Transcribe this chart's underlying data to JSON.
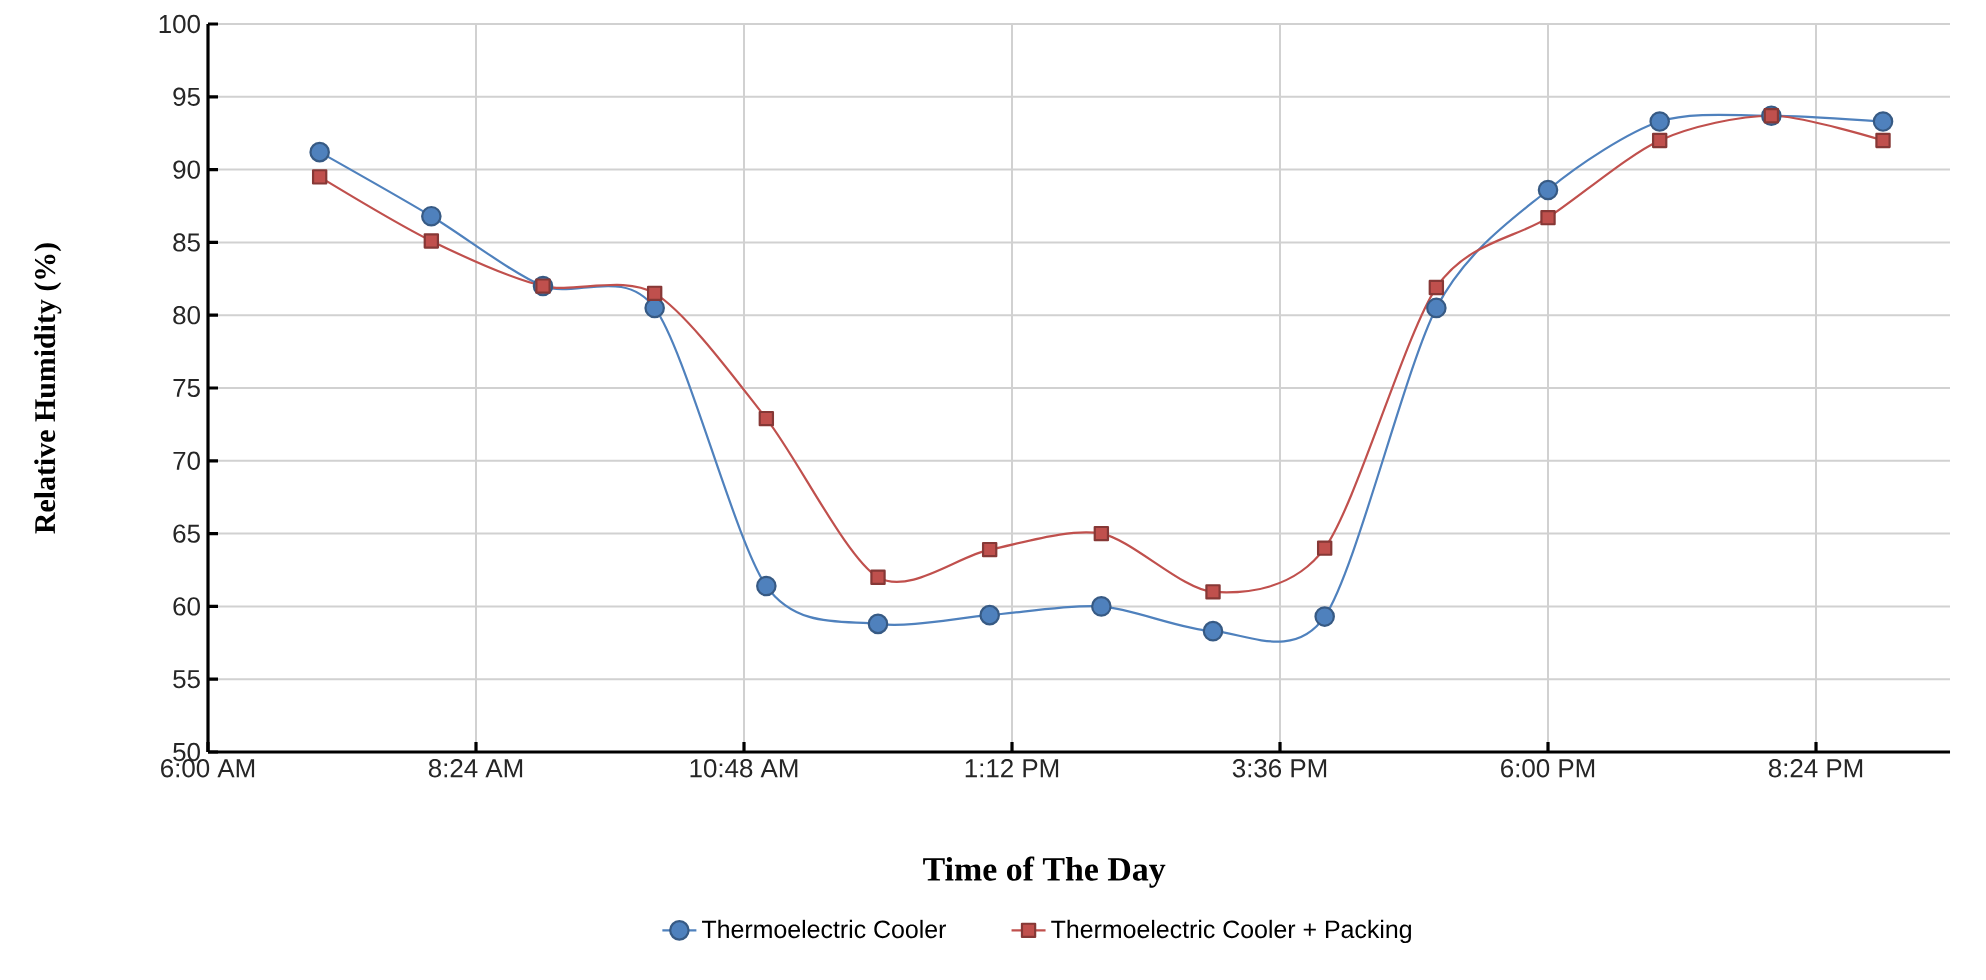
{
  "chart_data": {
    "type": "line",
    "xlabel": "Time of The Day",
    "ylabel": "Relative Humidity (%)",
    "x": [
      7,
      8,
      9,
      10,
      11,
      12,
      13,
      14,
      15,
      16,
      17,
      18,
      19,
      20,
      21
    ],
    "series": [
      {
        "name": "Thermoelectric Cooler",
        "color": "#4f81bd",
        "marker": "circle",
        "values": [
          91.2,
          86.8,
          82,
          80.5,
          61.4,
          58.8,
          59.4,
          60,
          58.3,
          59.3,
          80.5,
          88.6,
          93.3,
          93.7,
          93.3
        ]
      },
      {
        "name": "Thermoelectric Cooler + Packing",
        "color": "#c0504d",
        "marker": "square",
        "values": [
          89.5,
          85.1,
          82,
          81.5,
          72.9,
          62,
          63.9,
          65,
          61,
          64,
          81.9,
          86.7,
          92,
          93.7,
          92
        ]
      }
    ],
    "xlim": [
      6,
      21.6
    ],
    "xticks": [
      {
        "value": 6,
        "label": "6:00 AM"
      },
      {
        "value": 8.4,
        "label": "8:24 AM"
      },
      {
        "value": 10.8,
        "label": "10:48 AM"
      },
      {
        "value": 13.2,
        "label": "1:12 PM"
      },
      {
        "value": 15.6,
        "label": "3:36 PM"
      },
      {
        "value": 18,
        "label": "6:00 PM"
      },
      {
        "value": 20.4,
        "label": "8:24 PM"
      }
    ],
    "ylim": [
      50,
      100
    ],
    "yticks": [
      50,
      55,
      60,
      65,
      70,
      75,
      80,
      85,
      90,
      95,
      100
    ],
    "grid": true,
    "legend": "bottom",
    "line_style": "solid"
  }
}
